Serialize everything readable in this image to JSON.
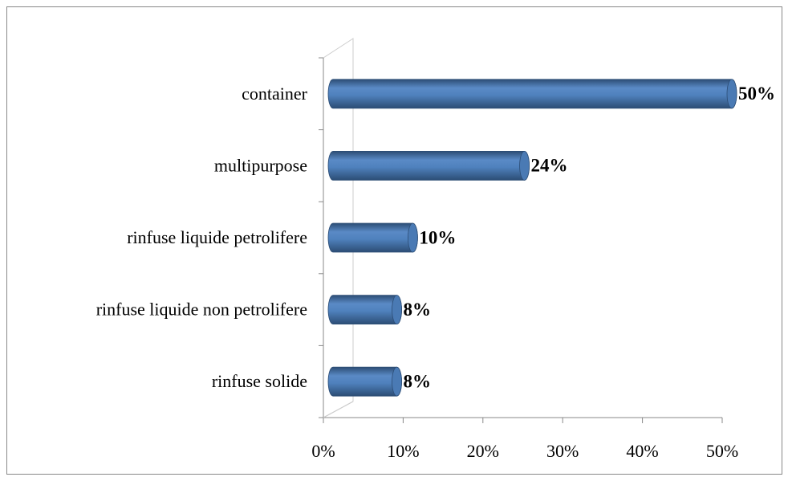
{
  "chart_data": {
    "type": "bar",
    "orientation": "horizontal",
    "categories": [
      "container",
      "multipurpose",
      "rinfuse liquide petrolifere",
      "rinfuse liquide non petrolifere",
      "rinfuse solide"
    ],
    "values": [
      50,
      24,
      10,
      8,
      8
    ],
    "value_labels": [
      "50%",
      "24%",
      "10%",
      "8%",
      "8%"
    ],
    "color": "#4f81bd",
    "xlim": [
      0,
      50
    ],
    "xticks": [
      {
        "value": 0,
        "label": "0%"
      },
      {
        "value": 10,
        "label": "10%"
      },
      {
        "value": 20,
        "label": "20%"
      },
      {
        "value": 30,
        "label": "30%"
      },
      {
        "value": 40,
        "label": "40%"
      },
      {
        "value": 50,
        "label": "50%"
      }
    ],
    "grid": false
  }
}
